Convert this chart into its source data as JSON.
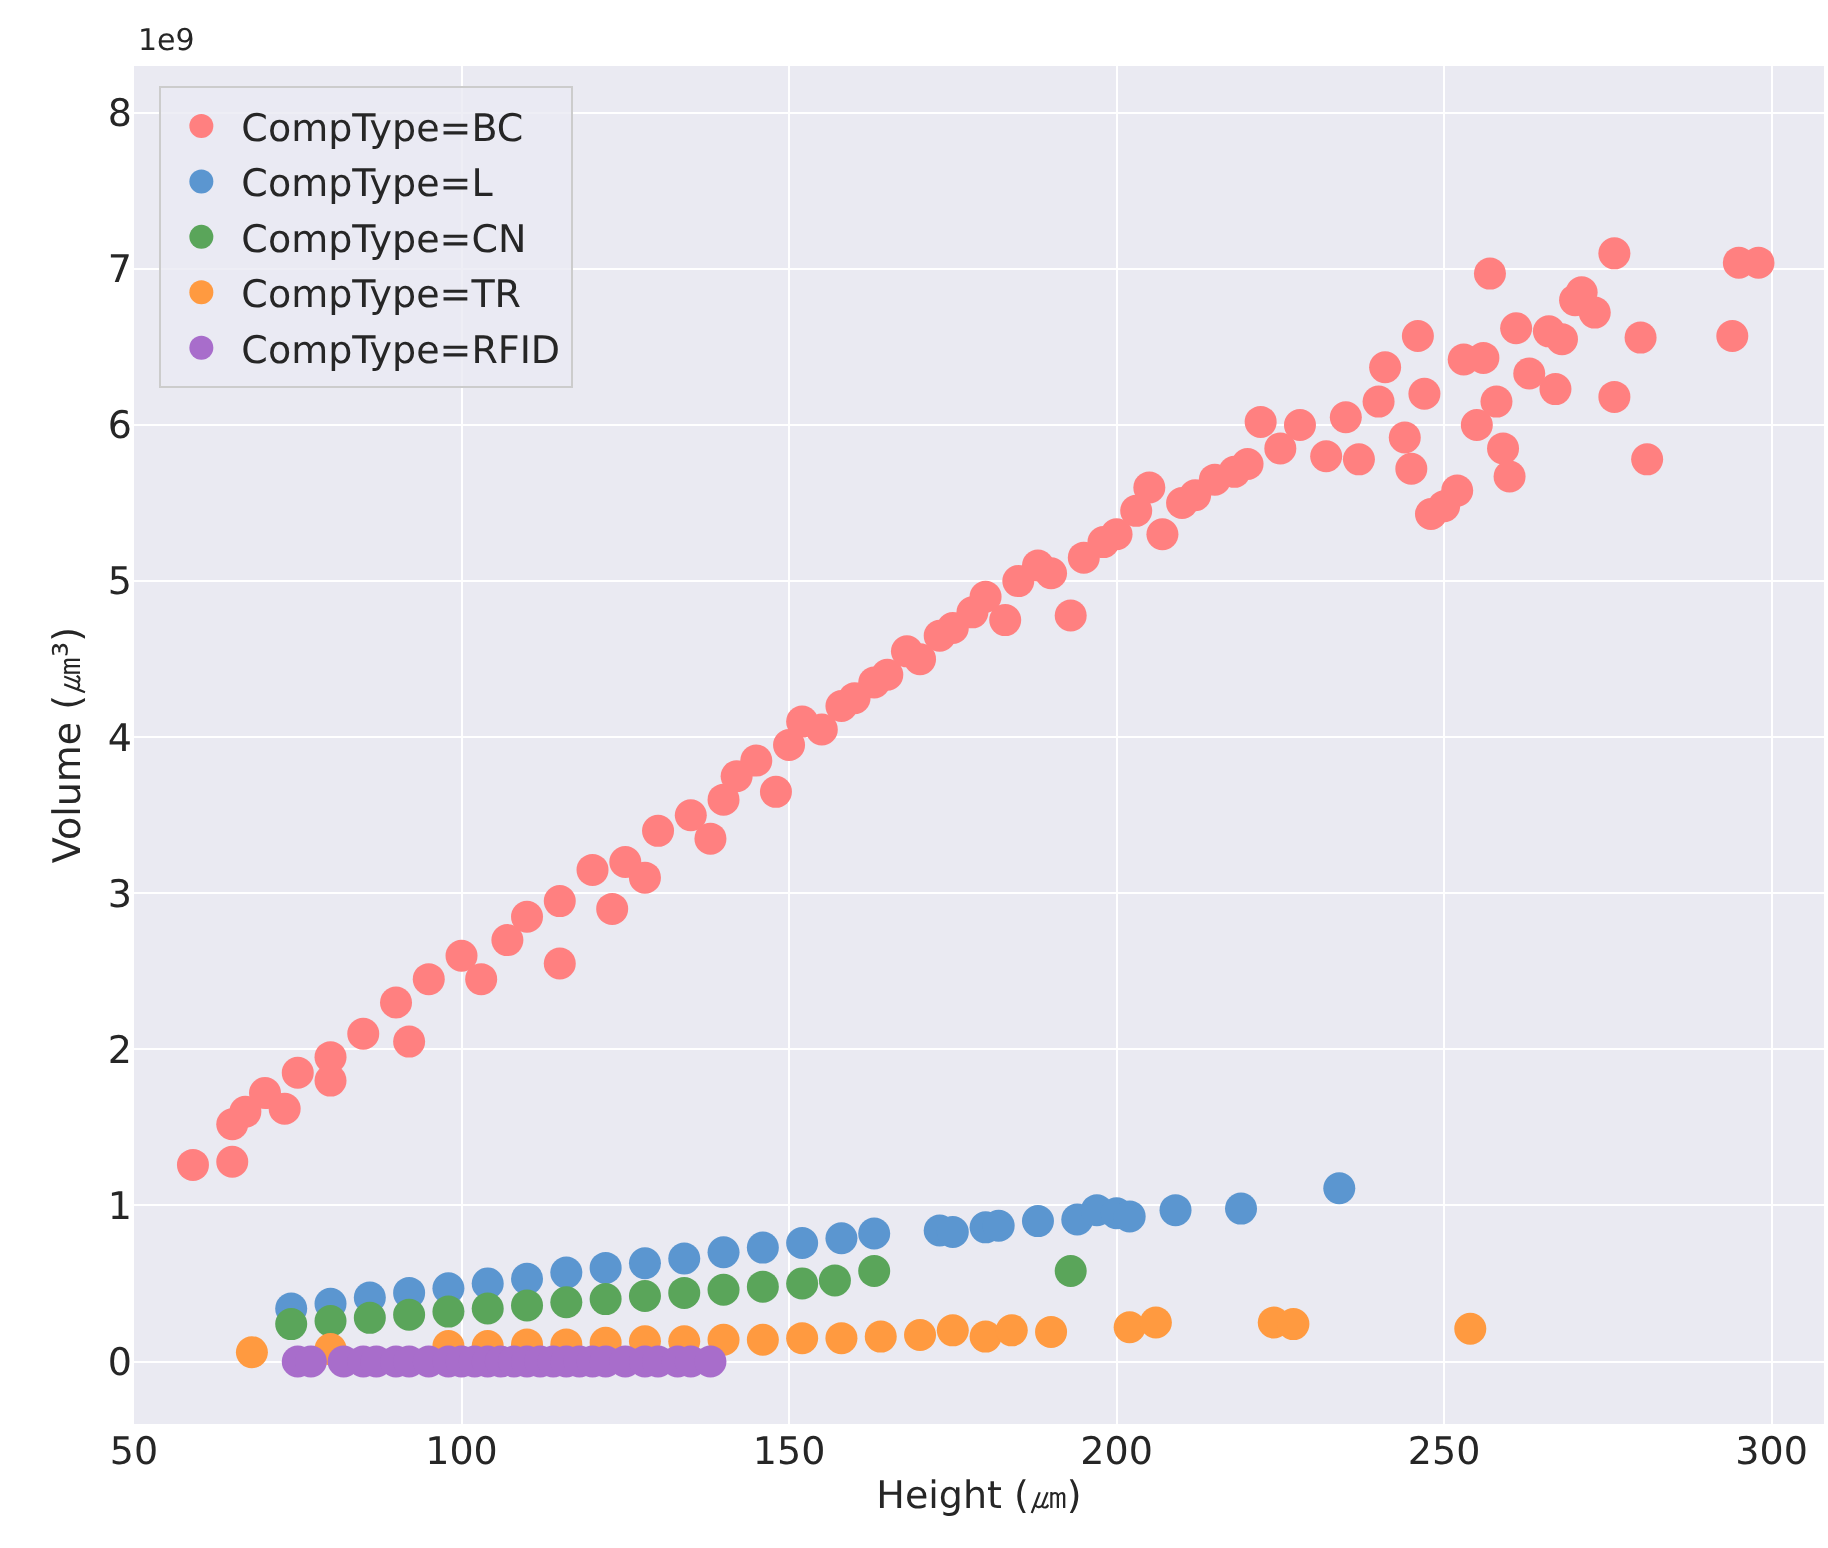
{
  "chart_data": {
    "type": "scatter",
    "xlabel": "Height (㎛)",
    "ylabel": "Volume (㎛³)",
    "annotations": [
      "1e9"
    ],
    "xlim": [
      50,
      308
    ],
    "xticks": [
      50,
      100,
      150,
      200,
      250,
      300
    ],
    "ylim": [
      -0.4,
      8.3
    ],
    "yticks": [
      0,
      1,
      2,
      3,
      4,
      5,
      6,
      7,
      8
    ],
    "grid": true,
    "legend": "top left",
    "marker": "circle",
    "series": [
      {
        "name": "CompType=BC",
        "color": "#ff8080",
        "x": [
          59,
          65,
          65,
          67,
          70,
          73,
          75,
          80,
          80,
          85,
          90,
          92,
          95,
          100,
          103,
          107,
          110,
          115,
          115,
          120,
          123,
          125,
          128,
          130,
          135,
          138,
          140,
          142,
          145,
          148,
          150,
          152,
          155,
          158,
          160,
          163,
          165,
          168,
          170,
          173,
          175,
          178,
          180,
          183,
          185,
          188,
          190,
          193,
          195,
          198,
          200,
          203,
          205,
          207,
          210,
          212,
          215,
          218,
          220,
          222,
          225,
          228,
          232,
          235,
          237,
          240,
          241,
          244,
          245,
          246,
          247,
          248,
          250,
          252,
          253,
          255,
          256,
          257,
          258,
          259,
          260,
          261,
          263,
          266,
          267,
          268,
          270,
          271,
          273,
          276,
          276,
          280,
          281,
          294,
          295,
          298
        ],
        "values": [
          1.26,
          1.28,
          1.52,
          1.6,
          1.72,
          1.62,
          1.85,
          1.95,
          1.8,
          2.1,
          2.3,
          2.05,
          2.45,
          2.6,
          2.45,
          2.7,
          2.85,
          2.55,
          2.95,
          3.15,
          2.9,
          3.2,
          3.1,
          3.4,
          3.5,
          3.35,
          3.6,
          3.75,
          3.85,
          3.65,
          3.95,
          4.1,
          4.05,
          4.2,
          4.25,
          4.35,
          4.4,
          4.55,
          4.5,
          4.65,
          4.7,
          4.8,
          4.9,
          4.75,
          5.0,
          5.1,
          5.05,
          4.78,
          5.15,
          5.25,
          5.3,
          5.45,
          5.6,
          5.3,
          5.5,
          5.55,
          5.65,
          5.7,
          5.75,
          6.02,
          5.85,
          6.0,
          5.8,
          6.05,
          5.78,
          6.15,
          6.37,
          5.92,
          5.72,
          6.57,
          6.2,
          5.43,
          5.48,
          5.58,
          6.42,
          6.0,
          6.43,
          6.97,
          6.15,
          5.85,
          5.67,
          6.62,
          6.33,
          6.6,
          6.23,
          6.55,
          6.8,
          6.85,
          6.72,
          7.1,
          6.18,
          6.56,
          5.78,
          6.57,
          7.04,
          7.04
        ]
      },
      {
        "name": "CompType=L",
        "color": "#5b96d0",
        "x": [
          74,
          80,
          86,
          92,
          98,
          104,
          110,
          116,
          122,
          128,
          134,
          140,
          146,
          152,
          158,
          163,
          173,
          175,
          180,
          182,
          188,
          194,
          197,
          200,
          202,
          209,
          219,
          234
        ],
        "values": [
          0.34,
          0.37,
          0.41,
          0.44,
          0.47,
          0.5,
          0.53,
          0.57,
          0.6,
          0.63,
          0.66,
          0.7,
          0.73,
          0.76,
          0.79,
          0.82,
          0.84,
          0.83,
          0.86,
          0.87,
          0.9,
          0.91,
          0.97,
          0.95,
          0.93,
          0.97,
          0.98,
          1.11
        ]
      },
      {
        "name": "CompType=CN",
        "color": "#5aa55a",
        "x": [
          74,
          80,
          86,
          92,
          98,
          104,
          110,
          116,
          122,
          128,
          134,
          140,
          146,
          152,
          157,
          163,
          193
        ],
        "values": [
          0.24,
          0.26,
          0.28,
          0.3,
          0.32,
          0.34,
          0.36,
          0.38,
          0.4,
          0.42,
          0.44,
          0.46,
          0.48,
          0.5,
          0.52,
          0.58,
          0.58
        ]
      },
      {
        "name": "CompType=TR",
        "color": "#ff9a40",
        "x": [
          68,
          80,
          98,
          104,
          110,
          116,
          122,
          128,
          134,
          140,
          146,
          152,
          158,
          164,
          170,
          175,
          180,
          184,
          190,
          202,
          206,
          224,
          227,
          254
        ],
        "values": [
          0.06,
          0.08,
          0.1,
          0.1,
          0.11,
          0.11,
          0.12,
          0.13,
          0.13,
          0.14,
          0.14,
          0.15,
          0.15,
          0.16,
          0.17,
          0.2,
          0.16,
          0.2,
          0.19,
          0.22,
          0.25,
          0.25,
          0.24,
          0.21
        ]
      },
      {
        "name": "CompType=RFID",
        "color": "#a86dcb",
        "x": [
          75,
          77,
          82,
          85,
          87,
          90,
          92,
          95,
          98,
          100,
          102,
          104,
          106,
          108,
          110,
          112,
          114,
          116,
          118,
          120,
          122,
          125,
          128,
          130,
          133,
          135,
          138
        ],
        "values": [
          0,
          0,
          0,
          0,
          0,
          0,
          0,
          0,
          0,
          0,
          0,
          0,
          0,
          0,
          0,
          0,
          0,
          0,
          0,
          0,
          0,
          0,
          0,
          0,
          0,
          0,
          0
        ]
      }
    ]
  }
}
